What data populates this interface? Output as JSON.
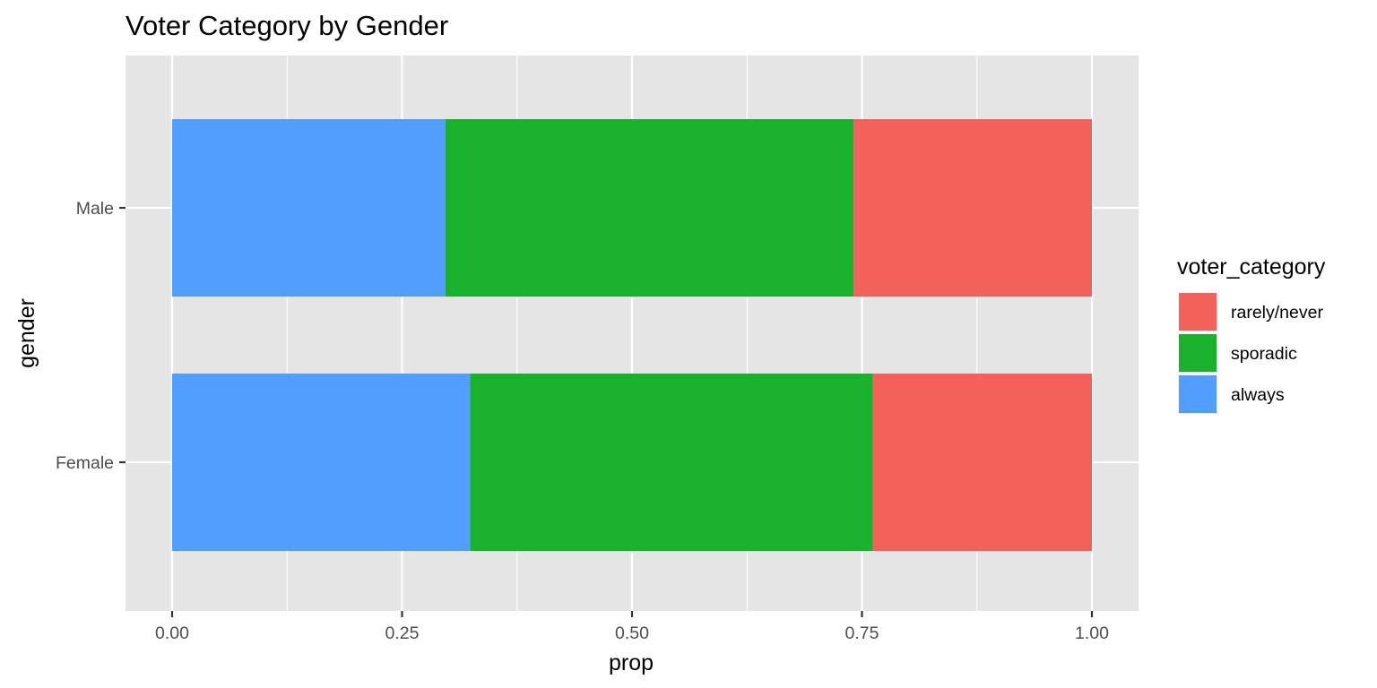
{
  "chart_data": {
    "type": "bar",
    "orientation": "horizontal",
    "stacked": true,
    "title": "Voter Category by Gender",
    "xlabel": "prop",
    "ylabel": "gender",
    "xlim": [
      0,
      1
    ],
    "x_ticks": [
      "0.00",
      "0.25",
      "0.50",
      "0.75",
      "1.00"
    ],
    "x_tick_values": [
      0,
      0.25,
      0.5,
      0.75,
      1.0
    ],
    "categories": [
      "Female",
      "Male"
    ],
    "series": [
      {
        "name": "always",
        "color": "#529efe",
        "values": [
          0.324,
          0.297
        ]
      },
      {
        "name": "sporadic",
        "color": "#1ab12d",
        "values": [
          0.438,
          0.444
        ]
      },
      {
        "name": "rarely/never",
        "color": "#f3615b",
        "values": [
          0.238,
          0.259
        ]
      }
    ],
    "legend": {
      "title": "voter_category",
      "position": "right",
      "items": [
        "rarely/never",
        "sporadic",
        "always"
      ]
    },
    "grid": true,
    "panel_background": "#e5e5e5"
  }
}
